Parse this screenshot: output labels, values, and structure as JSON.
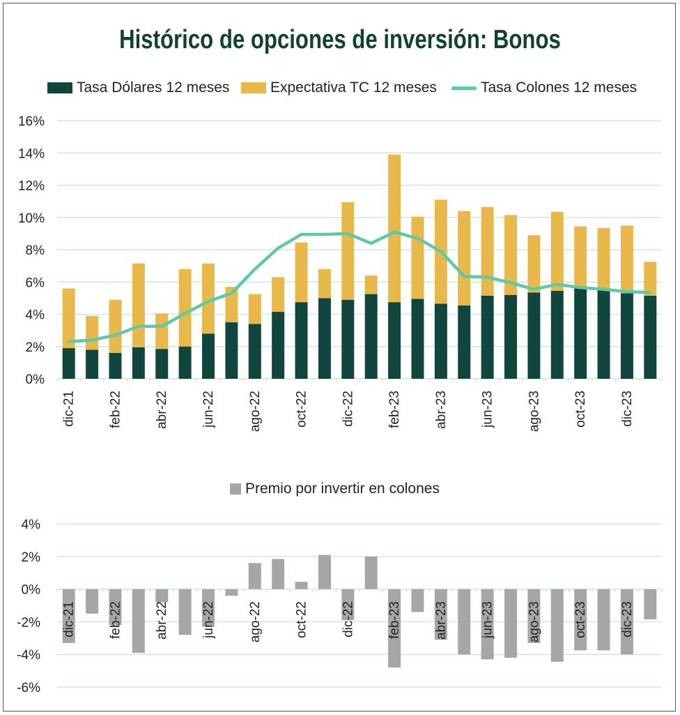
{
  "colors": {
    "usd": "#11463d",
    "tc": "#e8b84b",
    "crc_line": "#5fc9a6",
    "premium": "#a6a6a6",
    "title": "#123f36",
    "grid": "#c9ece2"
  },
  "chart_data": [
    {
      "type": "bar+line",
      "title": "Histórico de opciones de inversión: Bonos",
      "legend": [
        "Tasa Dólares 12 meses",
        "Expectativa TC 12 meses",
        "Tasa Colones 12 meses"
      ],
      "y_ticks": [
        "16%",
        "14%",
        "12%",
        "10%",
        "8%",
        "6%",
        "4%",
        "2%",
        "0%"
      ],
      "ylim": [
        0,
        16
      ],
      "x_labels": [
        "dic-21",
        "feb-22",
        "abr-22",
        "jun-22",
        "ago-22",
        "oct-22",
        "dic-22",
        "feb-23",
        "abr-23",
        "jun-23",
        "ago-23",
        "oct-23",
        "dic-23"
      ],
      "series": [
        {
          "name": "Tasa Dólares 12 meses",
          "kind": "stacked-bar",
          "values": [
            1.9,
            1.8,
            1.6,
            1.95,
            1.85,
            2.0,
            2.8,
            3.5,
            3.4,
            4.15,
            4.75,
            5.0,
            4.9,
            5.25,
            4.75,
            4.95,
            4.65,
            4.55,
            5.15,
            5.2,
            5.35,
            5.45,
            5.6,
            5.5,
            5.3,
            5.15
          ]
        },
        {
          "name": "Expectativa TC 12 meses",
          "kind": "stacked-bar",
          "values": [
            3.7,
            2.1,
            3.3,
            5.2,
            2.2,
            4.8,
            4.35,
            2.2,
            1.85,
            2.15,
            3.7,
            1.8,
            6.05,
            1.15,
            9.15,
            5.1,
            6.45,
            5.85,
            5.5,
            4.95,
            3.55,
            4.9,
            3.85,
            3.85,
            4.2,
            2.1
          ]
        },
        {
          "name": "Tasa Colones 12 meses",
          "kind": "line",
          "values": [
            2.3,
            2.4,
            2.7,
            3.25,
            3.25,
            4.05,
            4.8,
            5.3,
            6.8,
            8.1,
            8.95,
            8.95,
            9.0,
            8.4,
            9.1,
            8.7,
            7.9,
            6.35,
            6.3,
            5.95,
            5.55,
            5.85,
            5.65,
            5.55,
            5.4,
            5.35
          ]
        }
      ]
    },
    {
      "type": "bar",
      "legend": [
        "Premio por invertir en colones"
      ],
      "y_ticks": [
        "4%",
        "2%",
        "0%",
        "-2%",
        "-4%",
        "-6%"
      ],
      "ylim": [
        -6,
        4
      ],
      "x_labels": [
        "dic-21",
        "feb-22",
        "abr-22",
        "jun-22",
        "ago-22",
        "oct-22",
        "dic-22",
        "feb-23",
        "abr-23",
        "jun-23",
        "ago-23",
        "oct-23",
        "dic-23"
      ],
      "series": [
        {
          "name": "Premio por invertir en colones",
          "values": [
            -3.3,
            -1.5,
            -2.2,
            -3.9,
            -0.8,
            -2.8,
            -2.3,
            -0.4,
            1.6,
            1.85,
            0.45,
            2.1,
            -1.9,
            2.0,
            -4.8,
            -1.4,
            -3.1,
            -4.0,
            -4.3,
            -4.2,
            -3.3,
            -4.45,
            -3.75,
            -3.75,
            -4.0,
            -1.85
          ]
        }
      ]
    }
  ]
}
